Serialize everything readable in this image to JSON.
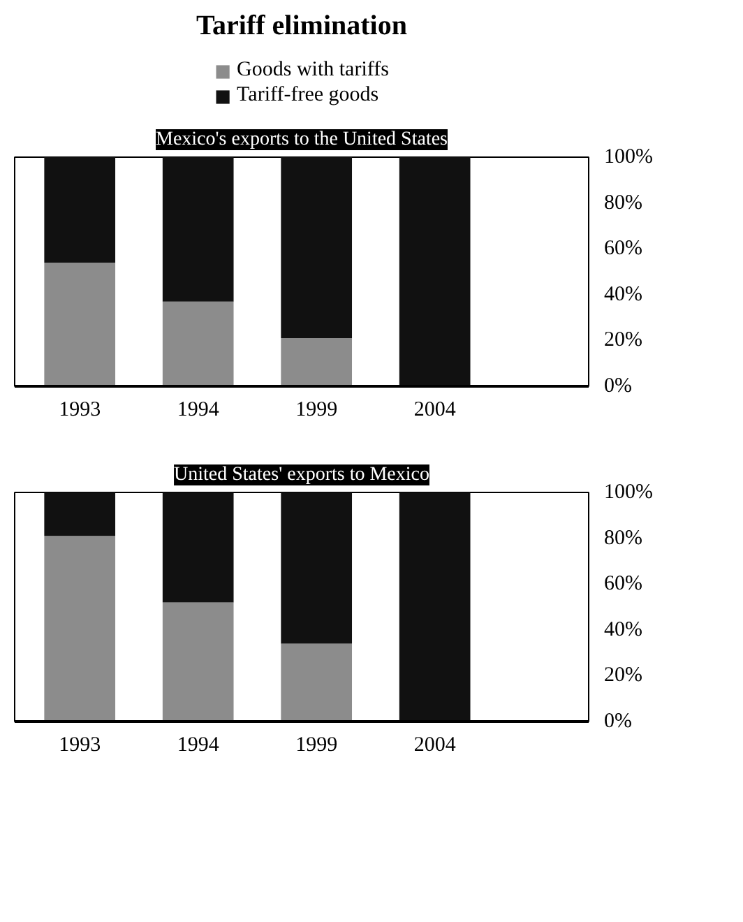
{
  "chart_data": [
    {
      "type": "bar",
      "title": "Tariff elimination",
      "subtitle": "Mexico's exports to the United States",
      "categories": [
        "1993",
        "1994",
        "1999",
        "2004"
      ],
      "stacked": true,
      "legend": "top",
      "grid": false,
      "ylim": [
        0,
        100
      ],
      "yticks": [
        {
          "value": 0,
          "label": "0%"
        },
        {
          "value": 20,
          "label": "20%"
        },
        {
          "value": 40,
          "label": "40%"
        },
        {
          "value": 60,
          "label": "60%"
        },
        {
          "value": 80,
          "label": "80%"
        },
        {
          "value": 100,
          "label": "100%"
        }
      ],
      "series": [
        {
          "name": "Goods with tariffs",
          "color": "#8c8c8c",
          "values": [
            54,
            37,
            21,
            0
          ]
        },
        {
          "name": "Tariff-free goods",
          "color": "#111111",
          "values": [
            46,
            63,
            79,
            100
          ]
        }
      ]
    },
    {
      "type": "bar",
      "subtitle": "United States' exports to Mexico",
      "categories": [
        "1993",
        "1994",
        "1999",
        "2004"
      ],
      "stacked": true,
      "grid": false,
      "ylim": [
        0,
        100
      ],
      "yticks": [
        {
          "value": 0,
          "label": "0%"
        },
        {
          "value": 20,
          "label": "20%"
        },
        {
          "value": 40,
          "label": "40%"
        },
        {
          "value": 60,
          "label": "60%"
        },
        {
          "value": 80,
          "label": "80%"
        },
        {
          "value": 100,
          "label": "100%"
        }
      ],
      "series": [
        {
          "color": "#8c8c8c",
          "values": [
            81,
            52,
            34,
            0
          ]
        },
        {
          "color": "#111111",
          "values": [
            19,
            48,
            66,
            100
          ]
        }
      ]
    }
  ]
}
